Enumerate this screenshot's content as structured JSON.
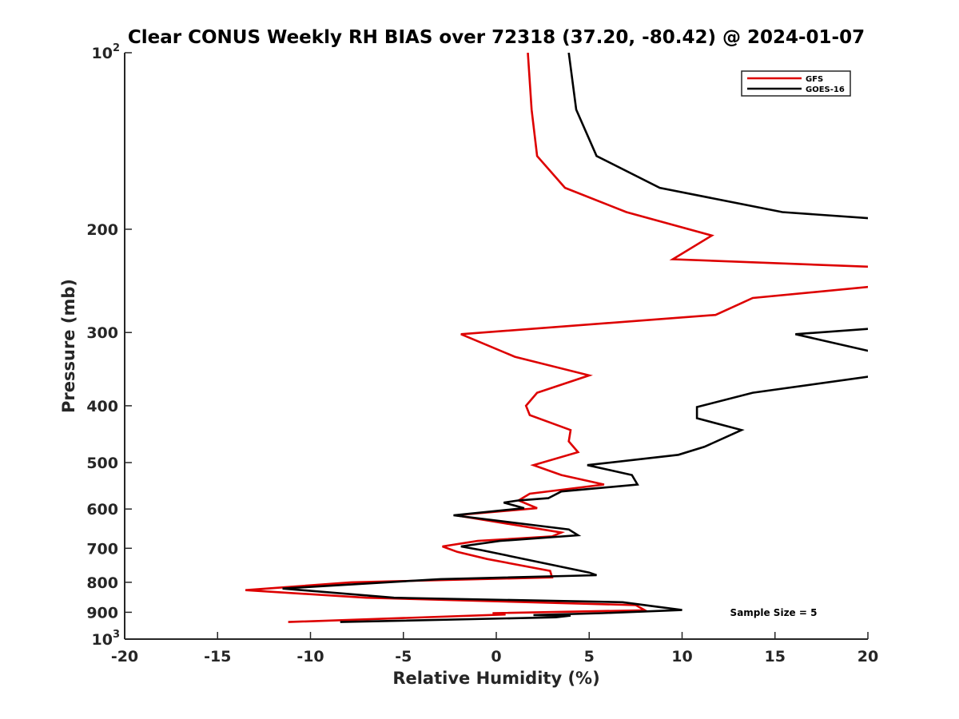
{
  "chart_data": {
    "type": "line",
    "title": "Clear CONUS Weekly RH BIAS over 72318 (37.20, -80.42) @ 2024-01-07",
    "xlabel": "Relative Humidity (%)",
    "ylabel": "Pressure (mb)",
    "xlim": [
      -20,
      20
    ],
    "ylim": [
      100,
      1000
    ],
    "y_scale": "log",
    "y_reversed": true,
    "x_ticks": [
      "-20",
      "-15",
      "-10",
      "-5",
      "0",
      "5",
      "10",
      "15",
      "20"
    ],
    "y_ticks": [
      {
        "value": 100,
        "base": "10",
        "exp": "2"
      },
      {
        "value": 200,
        "label": "200"
      },
      {
        "value": 300,
        "label": "300"
      },
      {
        "value": 400,
        "label": "400"
      },
      {
        "value": 500,
        "label": "500"
      },
      {
        "value": 600,
        "label": "600"
      },
      {
        "value": 700,
        "label": "700"
      },
      {
        "value": 800,
        "label": "800"
      },
      {
        "value": 900,
        "label": "900"
      },
      {
        "value": 1000,
        "base": "10",
        "exp": "3"
      }
    ],
    "grid": false,
    "legend": "top-right",
    "annotation": "Sample Size = 5",
    "series": [
      {
        "name": "GFS",
        "color": "#dd0000",
        "points": [
          [
            1.7,
            100
          ],
          [
            1.9,
            125
          ],
          [
            2.2,
            150
          ],
          [
            3.7,
            170
          ],
          [
            7.0,
            187
          ],
          [
            11.6,
            205
          ],
          [
            9.5,
            225
          ],
          [
            20.5,
            232
          ],
          [
            20.5,
            250
          ],
          [
            13.8,
            262
          ],
          [
            11.8,
            280
          ],
          [
            -1.9,
            302
          ],
          [
            1.0,
            330
          ],
          [
            5.0,
            355
          ],
          [
            2.2,
            380
          ],
          [
            1.6,
            400
          ],
          [
            1.8,
            415
          ],
          [
            4.0,
            440
          ],
          [
            3.9,
            460
          ],
          [
            4.4,
            480
          ],
          [
            2.0,
            505
          ],
          [
            3.5,
            525
          ],
          [
            5.8,
            545
          ],
          [
            1.8,
            565
          ],
          [
            1.2,
            580
          ],
          [
            2.2,
            598
          ],
          [
            -2.2,
            615
          ],
          [
            0.5,
            635
          ],
          [
            3.5,
            658
          ],
          [
            3.0,
            668
          ],
          [
            -1.0,
            680
          ],
          [
            -2.9,
            695
          ],
          [
            -2.1,
            710
          ],
          [
            -0.5,
            730
          ],
          [
            2.9,
            765
          ],
          [
            3.0,
            785
          ],
          [
            -7.8,
            800
          ],
          [
            -13.5,
            825
          ],
          [
            -7.0,
            850
          ],
          [
            7.5,
            875
          ],
          [
            8.0,
            893
          ],
          [
            -0.2,
            903
          ],
          [
            0.5,
            908
          ],
          [
            -11.2,
            935
          ]
        ]
      },
      {
        "name": "GOES-16",
        "color": "#000000",
        "points": [
          [
            3.9,
            100
          ],
          [
            4.3,
            125
          ],
          [
            5.4,
            150
          ],
          [
            8.8,
            170
          ],
          [
            15.4,
            187
          ],
          [
            20.5,
            192
          ],
          [
            20.5,
            295
          ],
          [
            16.1,
            302
          ],
          [
            20.5,
            325
          ],
          [
            20.5,
            355
          ],
          [
            13.8,
            380
          ],
          [
            10.8,
            402
          ],
          [
            10.8,
            420
          ],
          [
            13.2,
            440
          ],
          [
            11.2,
            470
          ],
          [
            9.8,
            485
          ],
          [
            4.9,
            505
          ],
          [
            7.3,
            525
          ],
          [
            7.6,
            545
          ],
          [
            3.5,
            560
          ],
          [
            2.8,
            575
          ],
          [
            1.2,
            580
          ],
          [
            0.4,
            585
          ],
          [
            1.5,
            598
          ],
          [
            -2.3,
            615
          ],
          [
            3.9,
            650
          ],
          [
            4.4,
            665
          ],
          [
            0.2,
            680
          ],
          [
            -1.9,
            695
          ],
          [
            -0.8,
            705
          ],
          [
            5.0,
            770
          ],
          [
            5.4,
            778
          ],
          [
            -3.0,
            790
          ],
          [
            -11.5,
            820
          ],
          [
            -5.5,
            850
          ],
          [
            6.8,
            865
          ],
          [
            10.0,
            892
          ],
          [
            5.7,
            903
          ],
          [
            2.0,
            910
          ],
          [
            4.0,
            912
          ],
          [
            3.2,
            918
          ],
          [
            -8.4,
            935
          ]
        ]
      }
    ]
  }
}
